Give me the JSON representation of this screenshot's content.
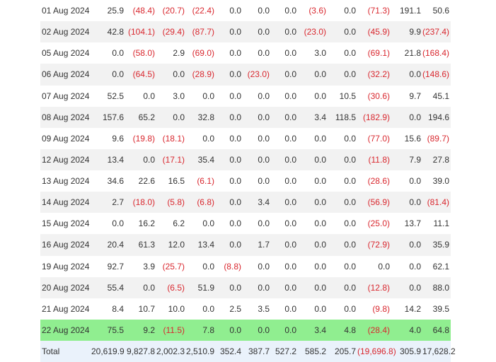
{
  "table": {
    "rows": [
      {
        "date": "01 Aug 2024",
        "cells": [
          "25.9",
          "(48.4)",
          "(20.7)",
          "(22.4)",
          "0.0",
          "0.0",
          "0.0",
          "(3.6)",
          "0.0",
          "(71.3)",
          "191.1",
          "50.6"
        ]
      },
      {
        "date": "02 Aug 2024",
        "cells": [
          "42.8",
          "(104.1)",
          "(29.4)",
          "(87.7)",
          "0.0",
          "0.0",
          "0.0",
          "(23.0)",
          "0.0",
          "(45.9)",
          "9.9",
          "(237.4)"
        ]
      },
      {
        "date": "05 Aug 2024",
        "cells": [
          "0.0",
          "(58.0)",
          "2.9",
          "(69.0)",
          "0.0",
          "0.0",
          "0.0",
          "3.0",
          "0.0",
          "(69.1)",
          "21.8",
          "(168.4)"
        ]
      },
      {
        "date": "06 Aug 2024",
        "cells": [
          "0.0",
          "(64.5)",
          "0.0",
          "(28.9)",
          "0.0",
          "(23.0)",
          "0.0",
          "0.0",
          "0.0",
          "(32.2)",
          "0.0",
          "(148.6)"
        ]
      },
      {
        "date": "07 Aug 2024",
        "cells": [
          "52.5",
          "0.0",
          "3.0",
          "0.0",
          "0.0",
          "0.0",
          "0.0",
          "0.0",
          "10.5",
          "(30.6)",
          "9.7",
          "45.1"
        ]
      },
      {
        "date": "08 Aug 2024",
        "cells": [
          "157.6",
          "65.2",
          "0.0",
          "32.8",
          "0.0",
          "0.0",
          "0.0",
          "3.4",
          "118.5",
          "(182.9)",
          "0.0",
          "194.6"
        ]
      },
      {
        "date": "09 Aug 2024",
        "cells": [
          "9.6",
          "(19.8)",
          "(18.1)",
          "0.0",
          "0.0",
          "0.0",
          "0.0",
          "0.0",
          "0.0",
          "(77.0)",
          "15.6",
          "(89.7)"
        ]
      },
      {
        "date": "12 Aug 2024",
        "cells": [
          "13.4",
          "0.0",
          "(17.1)",
          "35.4",
          "0.0",
          "0.0",
          "0.0",
          "0.0",
          "0.0",
          "(11.8)",
          "7.9",
          "27.8"
        ]
      },
      {
        "date": "13 Aug 2024",
        "cells": [
          "34.6",
          "22.6",
          "16.5",
          "(6.1)",
          "0.0",
          "0.0",
          "0.0",
          "0.0",
          "0.0",
          "(28.6)",
          "0.0",
          "39.0"
        ]
      },
      {
        "date": "14 Aug 2024",
        "cells": [
          "2.7",
          "(18.0)",
          "(5.8)",
          "(6.8)",
          "0.0",
          "3.4",
          "0.0",
          "0.0",
          "0.0",
          "(56.9)",
          "0.0",
          "(81.4)"
        ]
      },
      {
        "date": "15 Aug 2024",
        "cells": [
          "0.0",
          "16.2",
          "6.2",
          "0.0",
          "0.0",
          "0.0",
          "0.0",
          "0.0",
          "0.0",
          "(25.0)",
          "13.7",
          "11.1"
        ]
      },
      {
        "date": "16 Aug 2024",
        "cells": [
          "20.4",
          "61.3",
          "12.0",
          "13.4",
          "0.0",
          "1.7",
          "0.0",
          "0.0",
          "0.0",
          "(72.9)",
          "0.0",
          "35.9"
        ]
      },
      {
        "date": "19 Aug 2024",
        "cells": [
          "92.7",
          "3.9",
          "(25.7)",
          "0.0",
          "(8.8)",
          "0.0",
          "0.0",
          "0.0",
          "0.0",
          "0.0",
          "0.0",
          "62.1"
        ]
      },
      {
        "date": "20 Aug 2024",
        "cells": [
          "55.4",
          "0.0",
          "(6.5)",
          "51.9",
          "0.0",
          "0.0",
          "0.0",
          "0.0",
          "0.0",
          "(12.8)",
          "0.0",
          "88.0"
        ]
      },
      {
        "date": "21 Aug 2024",
        "cells": [
          "8.4",
          "10.7",
          "10.0",
          "0.0",
          "2.5",
          "3.5",
          "0.0",
          "0.0",
          "0.0",
          "(9.8)",
          "14.2",
          "39.5"
        ]
      },
      {
        "date": "22 Aug 2024",
        "cells": [
          "75.5",
          "9.2",
          "(11.5)",
          "7.8",
          "0.0",
          "0.0",
          "0.0",
          "3.4",
          "4.8",
          "(28.4)",
          "4.0",
          "64.8"
        ],
        "highlight": true
      }
    ],
    "total": {
      "label": "Total",
      "cells": [
        "20,619.9",
        "9,827.8",
        "2,002.3",
        "2,510.9",
        "352.4",
        "387.7",
        "527.2",
        "585.2",
        "205.7",
        "(19,696.8)",
        "305.9",
        "17,628.2"
      ]
    }
  },
  "colors": {
    "negative": "#d9282f",
    "highlight_row": "#90ee90",
    "stripe": "#f2f2f2",
    "total_row": "#eaf2fb"
  }
}
